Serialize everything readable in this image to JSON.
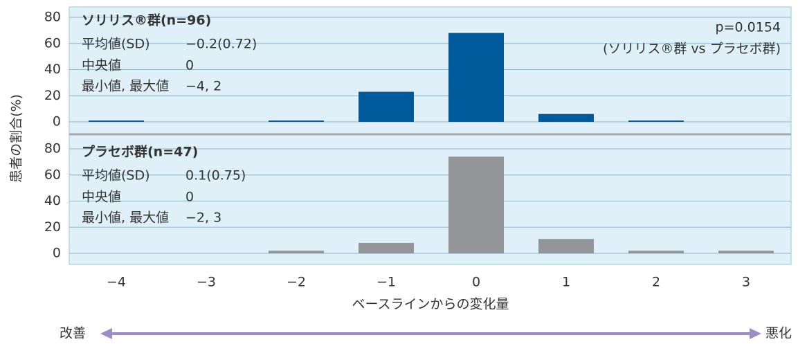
{
  "chart_data": [
    {
      "type": "bar",
      "title": "ソリリス®群(n=96)",
      "stats": [
        [
          "平均値(SD)",
          "−0.2(0.72)"
        ],
        [
          "中央値",
          "0"
        ],
        [
          "最小値, 最大値",
          "−4, 2"
        ]
      ],
      "annotation": [
        "p=0.0154",
        "(ソリリス®群 vs プラセボ群)"
      ],
      "categories": [
        "−4",
        "−3",
        "−2",
        "−1",
        "0",
        "1",
        "2",
        "3"
      ],
      "values": [
        1,
        0,
        1,
        23,
        68,
        6,
        1,
        0
      ],
      "color": "#005a9c",
      "ylim": [
        0,
        80
      ],
      "yticks": [
        0,
        20,
        40,
        60,
        80
      ],
      "grid": true
    },
    {
      "type": "bar",
      "title": "プラセボ群(n=47)",
      "stats": [
        [
          "平均値(SD)",
          "0.1(0.75)"
        ],
        [
          "中央値",
          "0"
        ],
        [
          "最小値, 最大値",
          "−2, 3"
        ]
      ],
      "categories": [
        "−4",
        "−3",
        "−2",
        "−1",
        "0",
        "1",
        "2",
        "3"
      ],
      "values": [
        0,
        0,
        2,
        8,
        74,
        11,
        2,
        2
      ],
      "color": "#939598",
      "ylim": [
        0,
        80
      ],
      "yticks": [
        0,
        20,
        40,
        60,
        80
      ],
      "grid": true
    }
  ],
  "xlabel": "ベースラインからの変化量",
  "ylabel": "患者の割合(%)",
  "arrow": {
    "left": "改善",
    "right": "悪化"
  }
}
